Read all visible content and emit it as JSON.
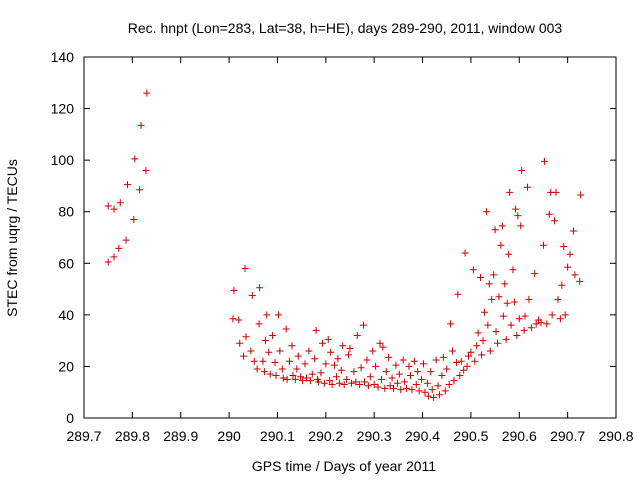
{
  "chart_data": {
    "type": "scatter",
    "title": "Rec. hnpt (Lon=283, Lat=38, h=HE), days 289-290, 2011, window 003",
    "xlabel": "GPS time / Days of year 2011",
    "ylabel": "STEC from uqrg / TECUs",
    "xlim": [
      289.7,
      290.8
    ],
    "ylim": [
      0,
      140
    ],
    "x_ticks": [
      289.7,
      289.8,
      289.9,
      290.0,
      290.1,
      290.2,
      290.3,
      290.4,
      290.5,
      290.6,
      290.7,
      290.8
    ],
    "x_tick_labels": [
      "289.7",
      "289.8",
      "289.9",
      "290",
      "290.1",
      "290.2",
      "290.3",
      "290.4",
      "290.5",
      "290.6",
      "290.7",
      "290.8"
    ],
    "y_ticks": [
      0,
      20,
      40,
      60,
      80,
      100,
      120,
      140
    ],
    "y_tick_labels": [
      "0",
      "20",
      "40",
      "60",
      "80",
      "100",
      "120",
      "140"
    ],
    "grid": false,
    "marker": "+",
    "series": [
      {
        "color": "#cc0000",
        "points": [
          [
            289.75,
            60.5
          ],
          [
            289.75,
            82.2
          ],
          [
            289.762,
            62.5
          ],
          [
            289.762,
            81.0
          ],
          [
            289.772,
            65.8
          ],
          [
            289.775,
            83.5
          ],
          [
            289.787,
            69.0
          ],
          [
            289.79,
            90.5
          ],
          [
            289.803,
            77.0
          ],
          [
            289.805,
            100.5
          ],
          [
            289.815,
            88.5
          ],
          [
            289.818,
            113.5
          ],
          [
            289.828,
            96.0
          ],
          [
            289.83,
            126.0
          ],
          [
            290.008,
            38.5
          ],
          [
            290.01,
            49.5
          ],
          [
            290.02,
            38.0
          ],
          [
            290.022,
            29.0
          ],
          [
            290.03,
            24.0
          ],
          [
            290.033,
            58.0
          ],
          [
            290.035,
            31.5
          ],
          [
            290.045,
            26.0
          ],
          [
            290.048,
            47.5
          ],
          [
            290.052,
            22.0
          ],
          [
            290.058,
            19.0
          ],
          [
            290.062,
            36.5
          ],
          [
            290.063,
            50.5
          ],
          [
            290.07,
            22.0
          ],
          [
            290.073,
            18.0
          ],
          [
            290.075,
            30.0
          ],
          [
            290.078,
            40.0
          ],
          [
            290.082,
            25.5
          ],
          [
            290.085,
            17.0
          ],
          [
            290.09,
            32.0
          ],
          [
            290.095,
            21.5
          ],
          [
            290.097,
            16.5
          ],
          [
            290.102,
            40.0
          ],
          [
            290.105,
            26.0
          ],
          [
            290.11,
            19.0
          ],
          [
            290.112,
            15.5
          ],
          [
            290.118,
            34.5
          ],
          [
            290.12,
            15.0
          ],
          [
            290.125,
            22.0
          ],
          [
            290.13,
            28.0
          ],
          [
            290.132,
            16.5
          ],
          [
            290.137,
            15.0
          ],
          [
            290.14,
            19.0
          ],
          [
            290.143,
            24.0
          ],
          [
            290.148,
            16.0
          ],
          [
            290.152,
            14.5
          ],
          [
            290.157,
            21.0
          ],
          [
            290.16,
            15.5
          ],
          [
            290.165,
            26.0
          ],
          [
            290.168,
            14.5
          ],
          [
            290.172,
            17.0
          ],
          [
            290.177,
            23.0
          ],
          [
            290.18,
            34.0
          ],
          [
            290.183,
            15.0
          ],
          [
            290.185,
            14.0
          ],
          [
            290.19,
            17.5
          ],
          [
            290.193,
            29.0
          ],
          [
            290.197,
            13.5
          ],
          [
            290.2,
            21.0
          ],
          [
            290.205,
            30.5
          ],
          [
            290.208,
            14.5
          ],
          [
            290.21,
            25.5
          ],
          [
            290.213,
            13.0
          ],
          [
            290.218,
            20.5
          ],
          [
            290.222,
            16.0
          ],
          [
            290.225,
            23.0
          ],
          [
            290.228,
            13.5
          ],
          [
            290.232,
            18.5
          ],
          [
            290.235,
            28.0
          ],
          [
            290.238,
            13.0
          ],
          [
            290.243,
            15.0
          ],
          [
            290.247,
            24.5
          ],
          [
            290.25,
            27.0
          ],
          [
            290.253,
            13.5
          ],
          [
            290.258,
            18.0
          ],
          [
            290.262,
            14.0
          ],
          [
            290.265,
            32.0
          ],
          [
            290.27,
            13.0
          ],
          [
            290.273,
            19.5
          ],
          [
            290.278,
            36.0
          ],
          [
            290.28,
            14.0
          ],
          [
            290.285,
            22.5
          ],
          [
            290.288,
            12.5
          ],
          [
            290.292,
            16.0
          ],
          [
            290.297,
            26.0
          ],
          [
            290.3,
            13.0
          ],
          [
            290.303,
            20.0
          ],
          [
            290.308,
            12.0
          ],
          [
            290.312,
            29.0
          ],
          [
            290.315,
            15.0
          ],
          [
            290.318,
            27.5
          ],
          [
            290.322,
            11.5
          ],
          [
            290.325,
            18.0
          ],
          [
            290.33,
            23.5
          ],
          [
            290.333,
            12.5
          ],
          [
            290.337,
            15.5
          ],
          [
            290.34,
            11.5
          ],
          [
            290.345,
            20.5
          ],
          [
            290.348,
            13.5
          ],
          [
            290.352,
            17.0
          ],
          [
            290.355,
            11.0
          ],
          [
            290.36,
            22.5
          ],
          [
            290.363,
            14.0
          ],
          [
            290.367,
            11.5
          ],
          [
            290.372,
            20.0
          ],
          [
            290.375,
            16.5
          ],
          [
            290.378,
            11.0
          ],
          [
            290.383,
            22.0
          ],
          [
            290.387,
            13.0
          ],
          [
            290.39,
            18.0
          ],
          [
            290.393,
            10.5
          ],
          [
            290.398,
            15.0
          ],
          [
            290.402,
            21.0
          ],
          [
            290.405,
            10.0
          ],
          [
            290.41,
            13.5
          ],
          [
            290.412,
            8.5
          ],
          [
            290.417,
            18.0
          ],
          [
            290.42,
            11.0
          ],
          [
            290.423,
            8.0
          ],
          [
            290.428,
            22.5
          ],
          [
            290.432,
            12.5
          ],
          [
            290.435,
            9.0
          ],
          [
            290.44,
            16.5
          ],
          [
            290.443,
            23.5
          ],
          [
            290.447,
            10.5
          ],
          [
            290.45,
            19.0
          ],
          [
            290.455,
            13.0
          ],
          [
            290.458,
            36.5
          ],
          [
            290.462,
            26.0
          ],
          [
            290.465,
            14.5
          ],
          [
            290.47,
            21.5
          ],
          [
            290.473,
            48.0
          ],
          [
            290.477,
            16.5
          ],
          [
            290.48,
            22.0
          ],
          [
            290.485,
            18.5
          ],
          [
            290.488,
            64.0
          ],
          [
            290.492,
            20.0
          ],
          [
            290.495,
            24.0
          ],
          [
            290.5,
            25.5
          ],
          [
            290.505,
            57.5
          ],
          [
            290.508,
            22.0
          ],
          [
            290.512,
            28.0
          ],
          [
            290.515,
            33.0
          ],
          [
            290.52,
            54.5
          ],
          [
            290.522,
            24.5
          ],
          [
            290.525,
            30.0
          ],
          [
            290.528,
            41.0
          ],
          [
            290.532,
            80.0
          ],
          [
            290.535,
            36.0
          ],
          [
            290.538,
            52.0
          ],
          [
            290.54,
            26.0
          ],
          [
            290.543,
            46.0
          ],
          [
            290.547,
            55.5
          ],
          [
            290.55,
            73.0
          ],
          [
            290.552,
            33.5
          ],
          [
            290.555,
            29.0
          ],
          [
            290.558,
            47.0
          ],
          [
            290.562,
            67.0
          ],
          [
            290.565,
            74.5
          ],
          [
            290.567,
            39.5
          ],
          [
            290.57,
            52.0
          ],
          [
            290.573,
            30.5
          ],
          [
            290.575,
            44.5
          ],
          [
            290.578,
            63.5
          ],
          [
            290.58,
            87.5
          ],
          [
            290.583,
            36.0
          ],
          [
            290.587,
            57.5
          ],
          [
            290.59,
            45.0
          ],
          [
            290.592,
            81.0
          ],
          [
            290.595,
            32.0
          ],
          [
            290.597,
            78.5
          ],
          [
            290.6,
            38.5
          ],
          [
            290.603,
            74.5
          ],
          [
            290.605,
            96.0
          ],
          [
            290.61,
            34.0
          ],
          [
            290.612,
            39.5
          ],
          [
            290.617,
            89.5
          ],
          [
            290.62,
            46.0
          ],
          [
            290.625,
            35.0
          ],
          [
            290.632,
            56.0
          ],
          [
            290.635,
            36.5
          ],
          [
            290.64,
            38.0
          ],
          [
            290.645,
            37.0
          ],
          [
            290.65,
            67.0
          ],
          [
            290.652,
            99.5
          ],
          [
            290.657,
            36.5
          ],
          [
            290.662,
            79.0
          ],
          [
            290.665,
            87.5
          ],
          [
            290.668,
            40.0
          ],
          [
            290.673,
            76.5
          ],
          [
            290.676,
            87.5
          ],
          [
            290.68,
            46.0
          ],
          [
            290.685,
            38.5
          ],
          [
            290.688,
            51.5
          ],
          [
            290.692,
            66.5
          ],
          [
            290.695,
            40.0
          ],
          [
            290.7,
            58.5
          ],
          [
            290.705,
            63.5
          ],
          [
            290.712,
            72.5
          ],
          [
            290.715,
            55.5
          ],
          [
            290.725,
            53.0
          ],
          [
            290.727,
            86.5
          ]
        ]
      }
    ]
  }
}
